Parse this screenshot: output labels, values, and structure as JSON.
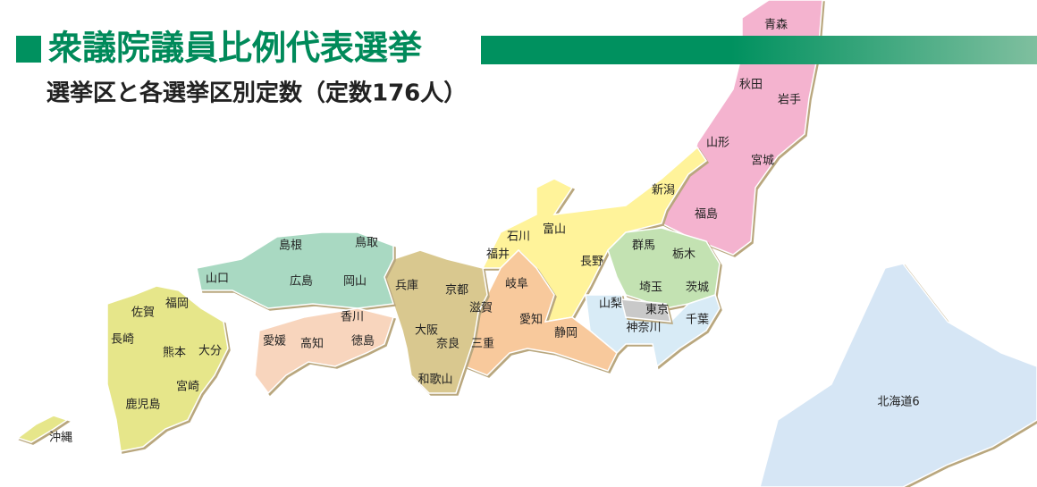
{
  "header": {
    "title": "衆議院議員比例代表選挙",
    "subtitle": "選挙区と各選挙区別定数（定数176人）"
  },
  "blocks": [
    {
      "color": "#d6e6f5",
      "prefectures": [
        "北海道6"
      ]
    },
    {
      "color": "#f4b3cf",
      "prefectures": [
        "青森",
        "秋田",
        "岩手",
        "山形",
        "宮城",
        "福島"
      ]
    },
    {
      "color": "#fff39a",
      "prefectures": [
        "新潟",
        "富山",
        "石川",
        "福井",
        "長野"
      ]
    },
    {
      "color": "#c3e2b2",
      "prefectures": [
        "群馬",
        "栃木",
        "埼玉",
        "茨城"
      ]
    },
    {
      "color": "#d8ebf6",
      "prefectures": [
        "千葉",
        "神奈川",
        "山梨"
      ]
    },
    {
      "color": "#c9c9c9",
      "prefectures": [
        "東京"
      ]
    },
    {
      "color": "#f8c99c",
      "prefectures": [
        "岐阜",
        "愛知",
        "静岡",
        "三重"
      ]
    },
    {
      "color": "#d9c88f",
      "prefectures": [
        "滋賀",
        "京都",
        "兵庫",
        "大阪",
        "奈良",
        "和歌山"
      ]
    },
    {
      "color": "#a9d9c2",
      "prefectures": [
        "鳥取",
        "島根",
        "岡山",
        "広島",
        "山口"
      ]
    },
    {
      "color": "#f8d5bd",
      "prefectures": [
        "香川",
        "徳島",
        "愛媛",
        "高知"
      ]
    },
    {
      "color": "#e6e68a",
      "prefectures": [
        "福岡",
        "佐賀",
        "長崎",
        "熊本",
        "大分",
        "宮崎",
        "鹿児島",
        "沖縄"
      ]
    }
  ]
}
